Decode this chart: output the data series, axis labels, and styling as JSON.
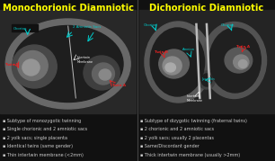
{
  "bg_color": "#111111",
  "left_title": "Monochorionic Diamniotic",
  "right_title": "Dichorionic Diamniotic",
  "title_color": "#FFFF00",
  "title_fontsize": 7.2,
  "left_bullets": [
    "Subtype of monozygotic twinning",
    "Single chorionic and 2 amniotic sacs",
    "2 yolk sacs; single placenta",
    "Identical twins (same gender)",
    "Thin intertwin membrane (<2mm)"
  ],
  "right_bullets": [
    "Subtype of dizygotic twinning (fraternal twins)",
    "2 chorionic and 2 amniotic sacs",
    "2 yolk sacs; usually 2 placentas",
    "Same/Discordant gender",
    "Thick intertwin membrane (usually >2mm)"
  ],
  "bullet_color": "#CCCCCC",
  "bullet_fontsize": 3.5,
  "divider_color": "#444444",
  "label_color": "#FFFFFF",
  "cyan_color": "#00CCCC",
  "red_color": "#DD2222",
  "us_bg": "#1c1c1c",
  "outer_ring": "#5a5a5a",
  "inner_bg": "#2a2a2a",
  "fetus_color": "#888888",
  "fetus_bright": "#aaaaaa",
  "membrane_color": "#bbbbbb"
}
